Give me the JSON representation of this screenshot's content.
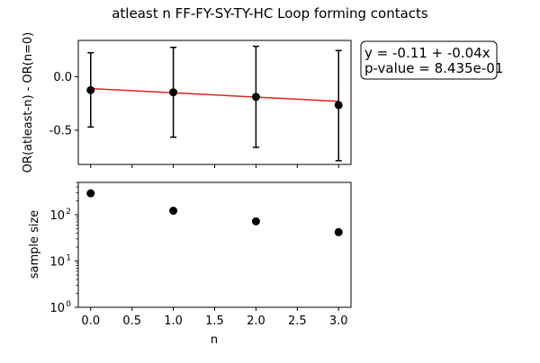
{
  "chart_data": [
    {
      "type": "scatter",
      "title": "atleast n FF-FY-SY-TY-HC Loop forming contacts",
      "xlabel": "",
      "ylabel": "OR(atleast-n) - OR(n=0)",
      "x": [
        0,
        1,
        2,
        3
      ],
      "y": [
        -0.125,
        -0.145,
        -0.188,
        -0.265
      ],
      "yerr_low": [
        -0.47,
        -0.565,
        -0.66,
        -0.785
      ],
      "yerr_high": [
        0.225,
        0.275,
        0.285,
        0.245
      ],
      "fit_line": {
        "slope": -0.04,
        "intercept": -0.11,
        "color": "#e8201a"
      },
      "xlim": [
        -0.15,
        3.15
      ],
      "ylim": [
        -0.82,
        0.34
      ],
      "yticks": [
        "0.0",
        "-0.5"
      ],
      "annotation": {
        "lines": [
          "y = -0.11 + -0.04x",
          "p-value = 8.435e-01"
        ]
      },
      "marker_color": "#000000"
    },
    {
      "type": "scatter",
      "xlabel": "n",
      "ylabel": "sample size",
      "yscale": "log",
      "x": [
        0,
        1,
        2,
        3
      ],
      "y": [
        290,
        122,
        72,
        42
      ],
      "xlim": [
        -0.15,
        3.15
      ],
      "ylim": [
        1,
        500
      ],
      "xticks": [
        "0.0",
        "0.5",
        "1.0",
        "1.5",
        "2.0",
        "2.5",
        "3.0"
      ],
      "ytick_bases": [
        "10",
        "10",
        "10"
      ],
      "ytick_exps": [
        "0",
        "1",
        "2"
      ],
      "marker_color": "#000000"
    }
  ]
}
